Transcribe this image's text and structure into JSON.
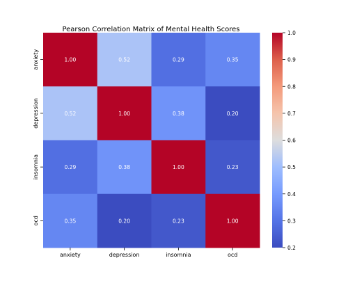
{
  "chart_data": {
    "type": "heatmap",
    "title": "Pearson Correlation Matrix of Mental Health Scores",
    "row_labels": [
      "anxiety",
      "depression",
      "insomnia",
      "ocd"
    ],
    "col_labels": [
      "anxiety",
      "depression",
      "insomnia",
      "ocd"
    ],
    "values": [
      [
        1.0,
        0.52,
        0.29,
        0.35
      ],
      [
        0.52,
        1.0,
        0.38,
        0.2
      ],
      [
        0.29,
        0.38,
        1.0,
        0.23
      ],
      [
        0.35,
        0.2,
        0.23,
        1.0
      ]
    ],
    "annotation_format": "0.00",
    "colormap": "coolwarm",
    "colorbar": {
      "min": 0.2,
      "max": 1.0,
      "ticks": [
        "0.2",
        "0.3",
        "0.4",
        "0.5",
        "0.6",
        "0.7",
        "0.8",
        "0.9",
        "1.0"
      ]
    },
    "annotation_text_color": "#ffffff"
  }
}
